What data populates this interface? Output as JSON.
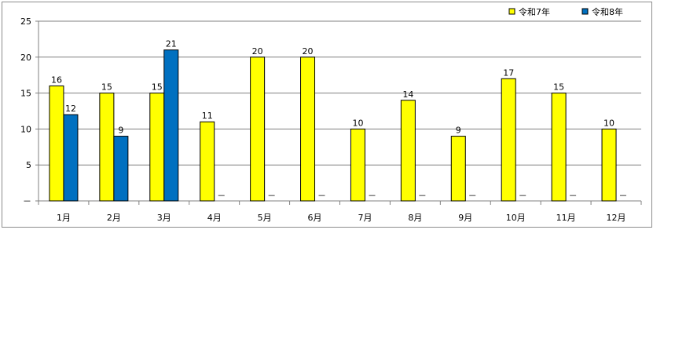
{
  "chart_data": {
    "type": "bar",
    "categories": [
      "1月",
      "2月",
      "3月",
      "4月",
      "5月",
      "6月",
      "7月",
      "8月",
      "9月",
      "10月",
      "11月",
      "12月"
    ],
    "series": [
      {
        "name": "令和7年",
        "color": "#ffff00",
        "values": [
          16,
          15,
          15,
          11,
          20,
          20,
          10,
          14,
          9,
          17,
          15,
          10
        ],
        "labels": [
          "16",
          "15",
          "15",
          "11",
          "20",
          "20",
          "10",
          "14",
          "9",
          "17",
          "15",
          "10"
        ]
      },
      {
        "name": "令和8年",
        "color": "#0070c0",
        "values": [
          12,
          9,
          21,
          null,
          null,
          null,
          null,
          null,
          null,
          null,
          null,
          null
        ],
        "labels": [
          "12",
          "9",
          "21",
          "－",
          "－",
          "－",
          "－",
          "－",
          "－",
          "－",
          "－",
          "－"
        ]
      }
    ],
    "y_ticks": [
      "－",
      "5",
      "10",
      "15",
      "20",
      "25"
    ],
    "ylim": [
      0,
      25
    ],
    "grid": true,
    "legend": "top-right"
  }
}
